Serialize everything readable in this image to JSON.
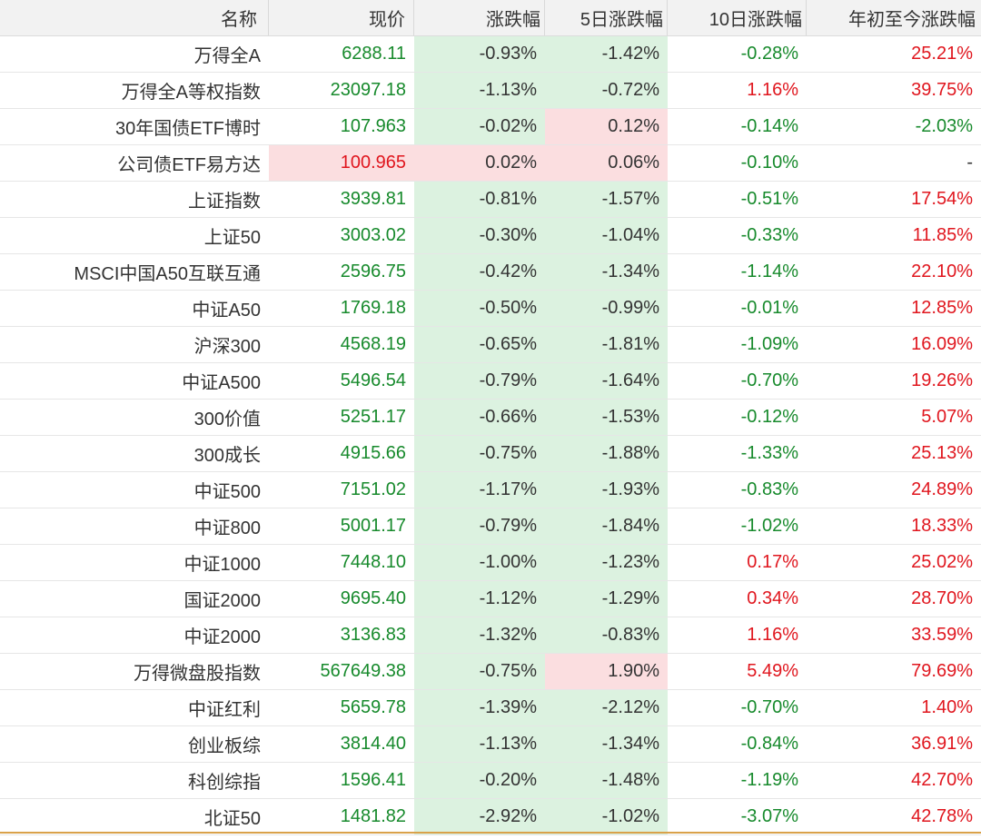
{
  "columns": [
    "名称",
    "现价",
    "涨跌幅",
    "5日涨跌幅",
    "10日涨跌幅",
    "年初至今涨跌幅"
  ],
  "colors": {
    "up": "#e0161e",
    "down": "#178a2c",
    "neutral": "#333333",
    "up_bg": "#fbdee0",
    "down_bg": "#dcf2e0"
  },
  "rows": [
    {
      "name": "万得全A",
      "price": "6288.11",
      "chg": "-0.93%",
      "chg5": "-1.42%",
      "chg10": "-0.28%",
      "ytd": "25.21%"
    },
    {
      "name": "万得全A等权指数",
      "price": "23097.18",
      "chg": "-1.13%",
      "chg5": "-0.72%",
      "chg10": "1.16%",
      "ytd": "39.75%"
    },
    {
      "name": "30年国债ETF博时",
      "price": "107.963",
      "chg": "-0.02%",
      "chg5": "0.12%",
      "chg10": "-0.14%",
      "ytd": "-2.03%"
    },
    {
      "name": "公司债ETF易方达",
      "price": "100.965",
      "chg": "0.02%",
      "chg5": "0.06%",
      "chg10": "-0.10%",
      "ytd": "-"
    },
    {
      "name": "上证指数",
      "price": "3939.81",
      "chg": "-0.81%",
      "chg5": "-1.57%",
      "chg10": "-0.51%",
      "ytd": "17.54%"
    },
    {
      "name": "上证50",
      "price": "3003.02",
      "chg": "-0.30%",
      "chg5": "-1.04%",
      "chg10": "-0.33%",
      "ytd": "11.85%"
    },
    {
      "name": "MSCI中国A50互联互通",
      "price": "2596.75",
      "chg": "-0.42%",
      "chg5": "-1.34%",
      "chg10": "-1.14%",
      "ytd": "22.10%"
    },
    {
      "name": "中证A50",
      "price": "1769.18",
      "chg": "-0.50%",
      "chg5": "-0.99%",
      "chg10": "-0.01%",
      "ytd": "12.85%"
    },
    {
      "name": "沪深300",
      "price": "4568.19",
      "chg": "-0.65%",
      "chg5": "-1.81%",
      "chg10": "-1.09%",
      "ytd": "16.09%"
    },
    {
      "name": "中证A500",
      "price": "5496.54",
      "chg": "-0.79%",
      "chg5": "-1.64%",
      "chg10": "-0.70%",
      "ytd": "19.26%"
    },
    {
      "name": "300价值",
      "price": "5251.17",
      "chg": "-0.66%",
      "chg5": "-1.53%",
      "chg10": "-0.12%",
      "ytd": "5.07%"
    },
    {
      "name": "300成长",
      "price": "4915.66",
      "chg": "-0.75%",
      "chg5": "-1.88%",
      "chg10": "-1.33%",
      "ytd": "25.13%"
    },
    {
      "name": "中证500",
      "price": "7151.02",
      "chg": "-1.17%",
      "chg5": "-1.93%",
      "chg10": "-0.83%",
      "ytd": "24.89%"
    },
    {
      "name": "中证800",
      "price": "5001.17",
      "chg": "-0.79%",
      "chg5": "-1.84%",
      "chg10": "-1.02%",
      "ytd": "18.33%"
    },
    {
      "name": "中证1000",
      "price": "7448.10",
      "chg": "-1.00%",
      "chg5": "-1.23%",
      "chg10": "0.17%",
      "ytd": "25.02%"
    },
    {
      "name": "国证2000",
      "price": "9695.40",
      "chg": "-1.12%",
      "chg5": "-1.29%",
      "chg10": "0.34%",
      "ytd": "28.70%"
    },
    {
      "name": "中证2000",
      "price": "3136.83",
      "chg": "-1.32%",
      "chg5": "-0.83%",
      "chg10": "1.16%",
      "ytd": "33.59%"
    },
    {
      "name": "万得微盘股指数",
      "price": "567649.38",
      "chg": "-0.75%",
      "chg5": "1.90%",
      "chg10": "5.49%",
      "ytd": "79.69%"
    },
    {
      "name": "中证红利",
      "price": "5659.78",
      "chg": "-1.39%",
      "chg5": "-2.12%",
      "chg10": "-0.70%",
      "ytd": "1.40%"
    },
    {
      "name": "创业板综",
      "price": "3814.40",
      "chg": "-1.13%",
      "chg5": "-1.34%",
      "chg10": "-0.84%",
      "ytd": "36.91%"
    },
    {
      "name": "科创综指",
      "price": "1596.41",
      "chg": "-0.20%",
      "chg5": "-1.48%",
      "chg10": "-1.19%",
      "ytd": "42.70%"
    },
    {
      "name": "北证50",
      "price": "1481.82",
      "chg": "-2.92%",
      "chg5": "-1.02%",
      "chg10": "-3.07%",
      "ytd": "42.78%"
    }
  ]
}
